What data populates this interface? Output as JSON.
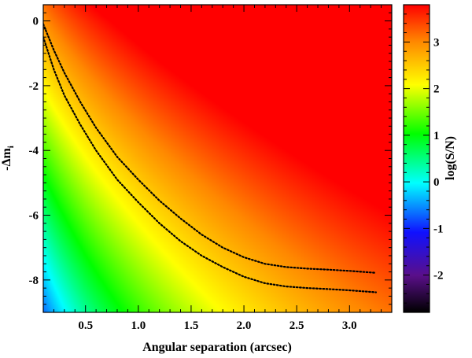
{
  "chart_data": {
    "type": "heatmap",
    "xlabel": "Angular separation (arcsec)",
    "ylabel": "-Δm",
    "ylabel_subscript": "i",
    "colorbar_label": "log(S/N)",
    "xlim": [
      0.1,
      3.4
    ],
    "ylim": [
      -9,
      0.5
    ],
    "x_ticks": [
      0.5,
      1.0,
      1.5,
      2.0,
      2.5,
      3.0
    ],
    "x_tick_labels": [
      "0.5",
      "1.0",
      "1.5",
      "2.0",
      "2.5",
      "3.0"
    ],
    "y_ticks": [
      0,
      -2,
      -4,
      -6,
      -8
    ],
    "y_tick_labels": [
      "0",
      "-2",
      "-4",
      "-6",
      "-8"
    ],
    "colorbar_range": [
      -2.8,
      3.8
    ],
    "colorbar_ticks": [
      -2,
      -1,
      0,
      1,
      2,
      3
    ],
    "colorbar_tick_labels": [
      "-2",
      "-1",
      "0",
      "1",
      "2",
      "3"
    ],
    "colormap": "rainbow",
    "series": [
      {
        "style": "dotted",
        "x": [
          0.1,
          0.2,
          0.3,
          0.45,
          0.6,
          0.8,
          1.0,
          1.2,
          1.4,
          1.6,
          1.8,
          2.0,
          2.2,
          2.4,
          2.6,
          2.8,
          3.0,
          3.25
        ],
        "y": [
          -0.1,
          -0.9,
          -1.6,
          -2.5,
          -3.3,
          -4.2,
          -4.9,
          -5.55,
          -6.1,
          -6.6,
          -7.0,
          -7.3,
          -7.5,
          -7.6,
          -7.65,
          -7.68,
          -7.72,
          -7.78
        ]
      },
      {
        "style": "dotted",
        "x": [
          0.1,
          0.2,
          0.3,
          0.45,
          0.6,
          0.8,
          1.0,
          1.2,
          1.4,
          1.6,
          1.8,
          2.0,
          2.2,
          2.4,
          2.6,
          2.8,
          3.0,
          3.25
        ],
        "y": [
          -0.5,
          -1.5,
          -2.3,
          -3.2,
          -4.0,
          -4.9,
          -5.6,
          -6.25,
          -6.8,
          -7.25,
          -7.6,
          -7.9,
          -8.1,
          -8.2,
          -8.25,
          -8.28,
          -8.32,
          -8.38
        ]
      }
    ]
  }
}
